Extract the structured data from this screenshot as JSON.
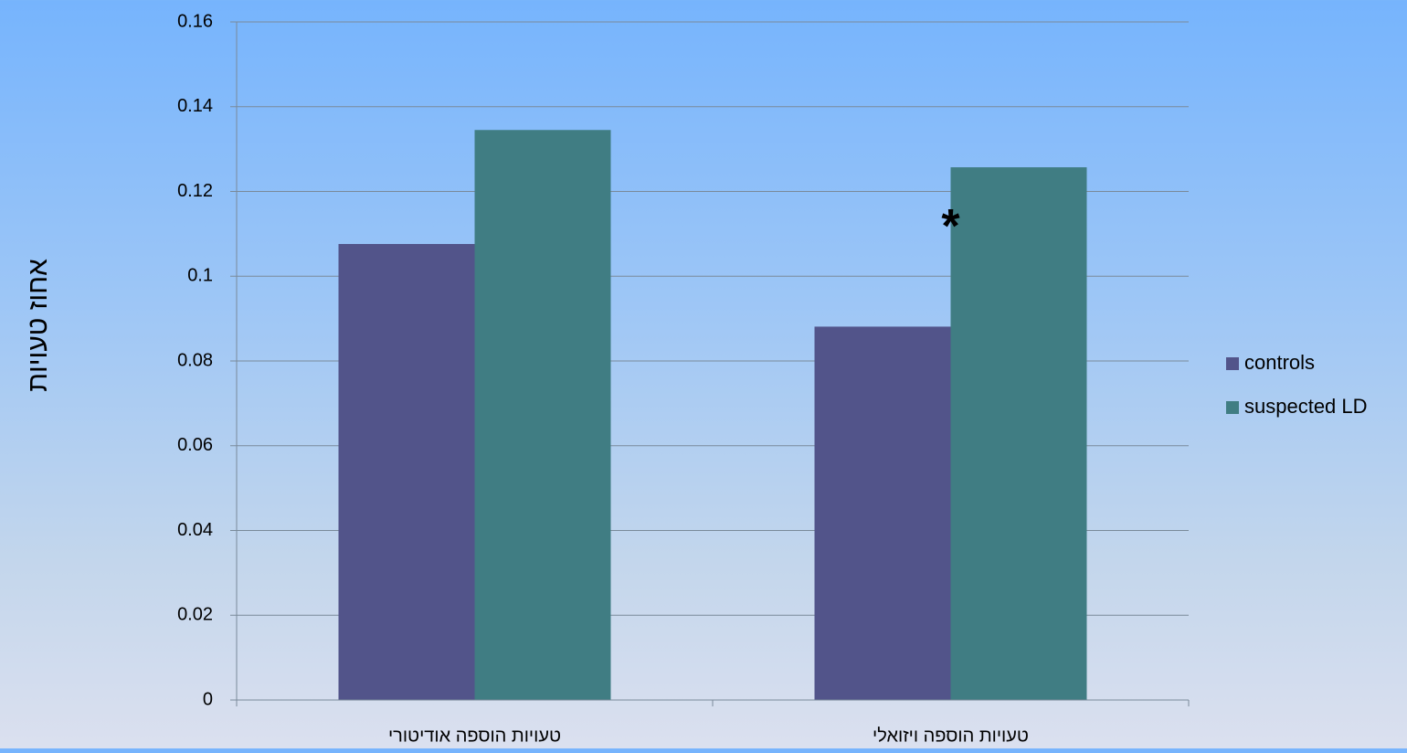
{
  "chart_data": {
    "type": "bar",
    "title": "",
    "xlabel": "",
    "ylabel": "אחוז טעויות",
    "categories": [
      "טעויות הוספה אודיטורי",
      "טעויות הוספה ויזואלי"
    ],
    "series": [
      {
        "name": "controls",
        "color": "#52548a",
        "values": [
          0.1076,
          0.0881
        ]
      },
      {
        "name": "suspected LD",
        "color": "#407d83",
        "values": [
          0.1345,
          0.1257
        ]
      }
    ],
    "ylim": [
      0,
      0.16
    ],
    "yticks": [
      "0",
      "0.02",
      "0.04",
      "0.06",
      "0.08",
      "0.1",
      "0.12",
      "0.14",
      "0.16"
    ],
    "grid": true,
    "legend_position": "right",
    "annotations": [
      {
        "text": "*",
        "category_index": 1,
        "y": 0.111
      }
    ]
  }
}
